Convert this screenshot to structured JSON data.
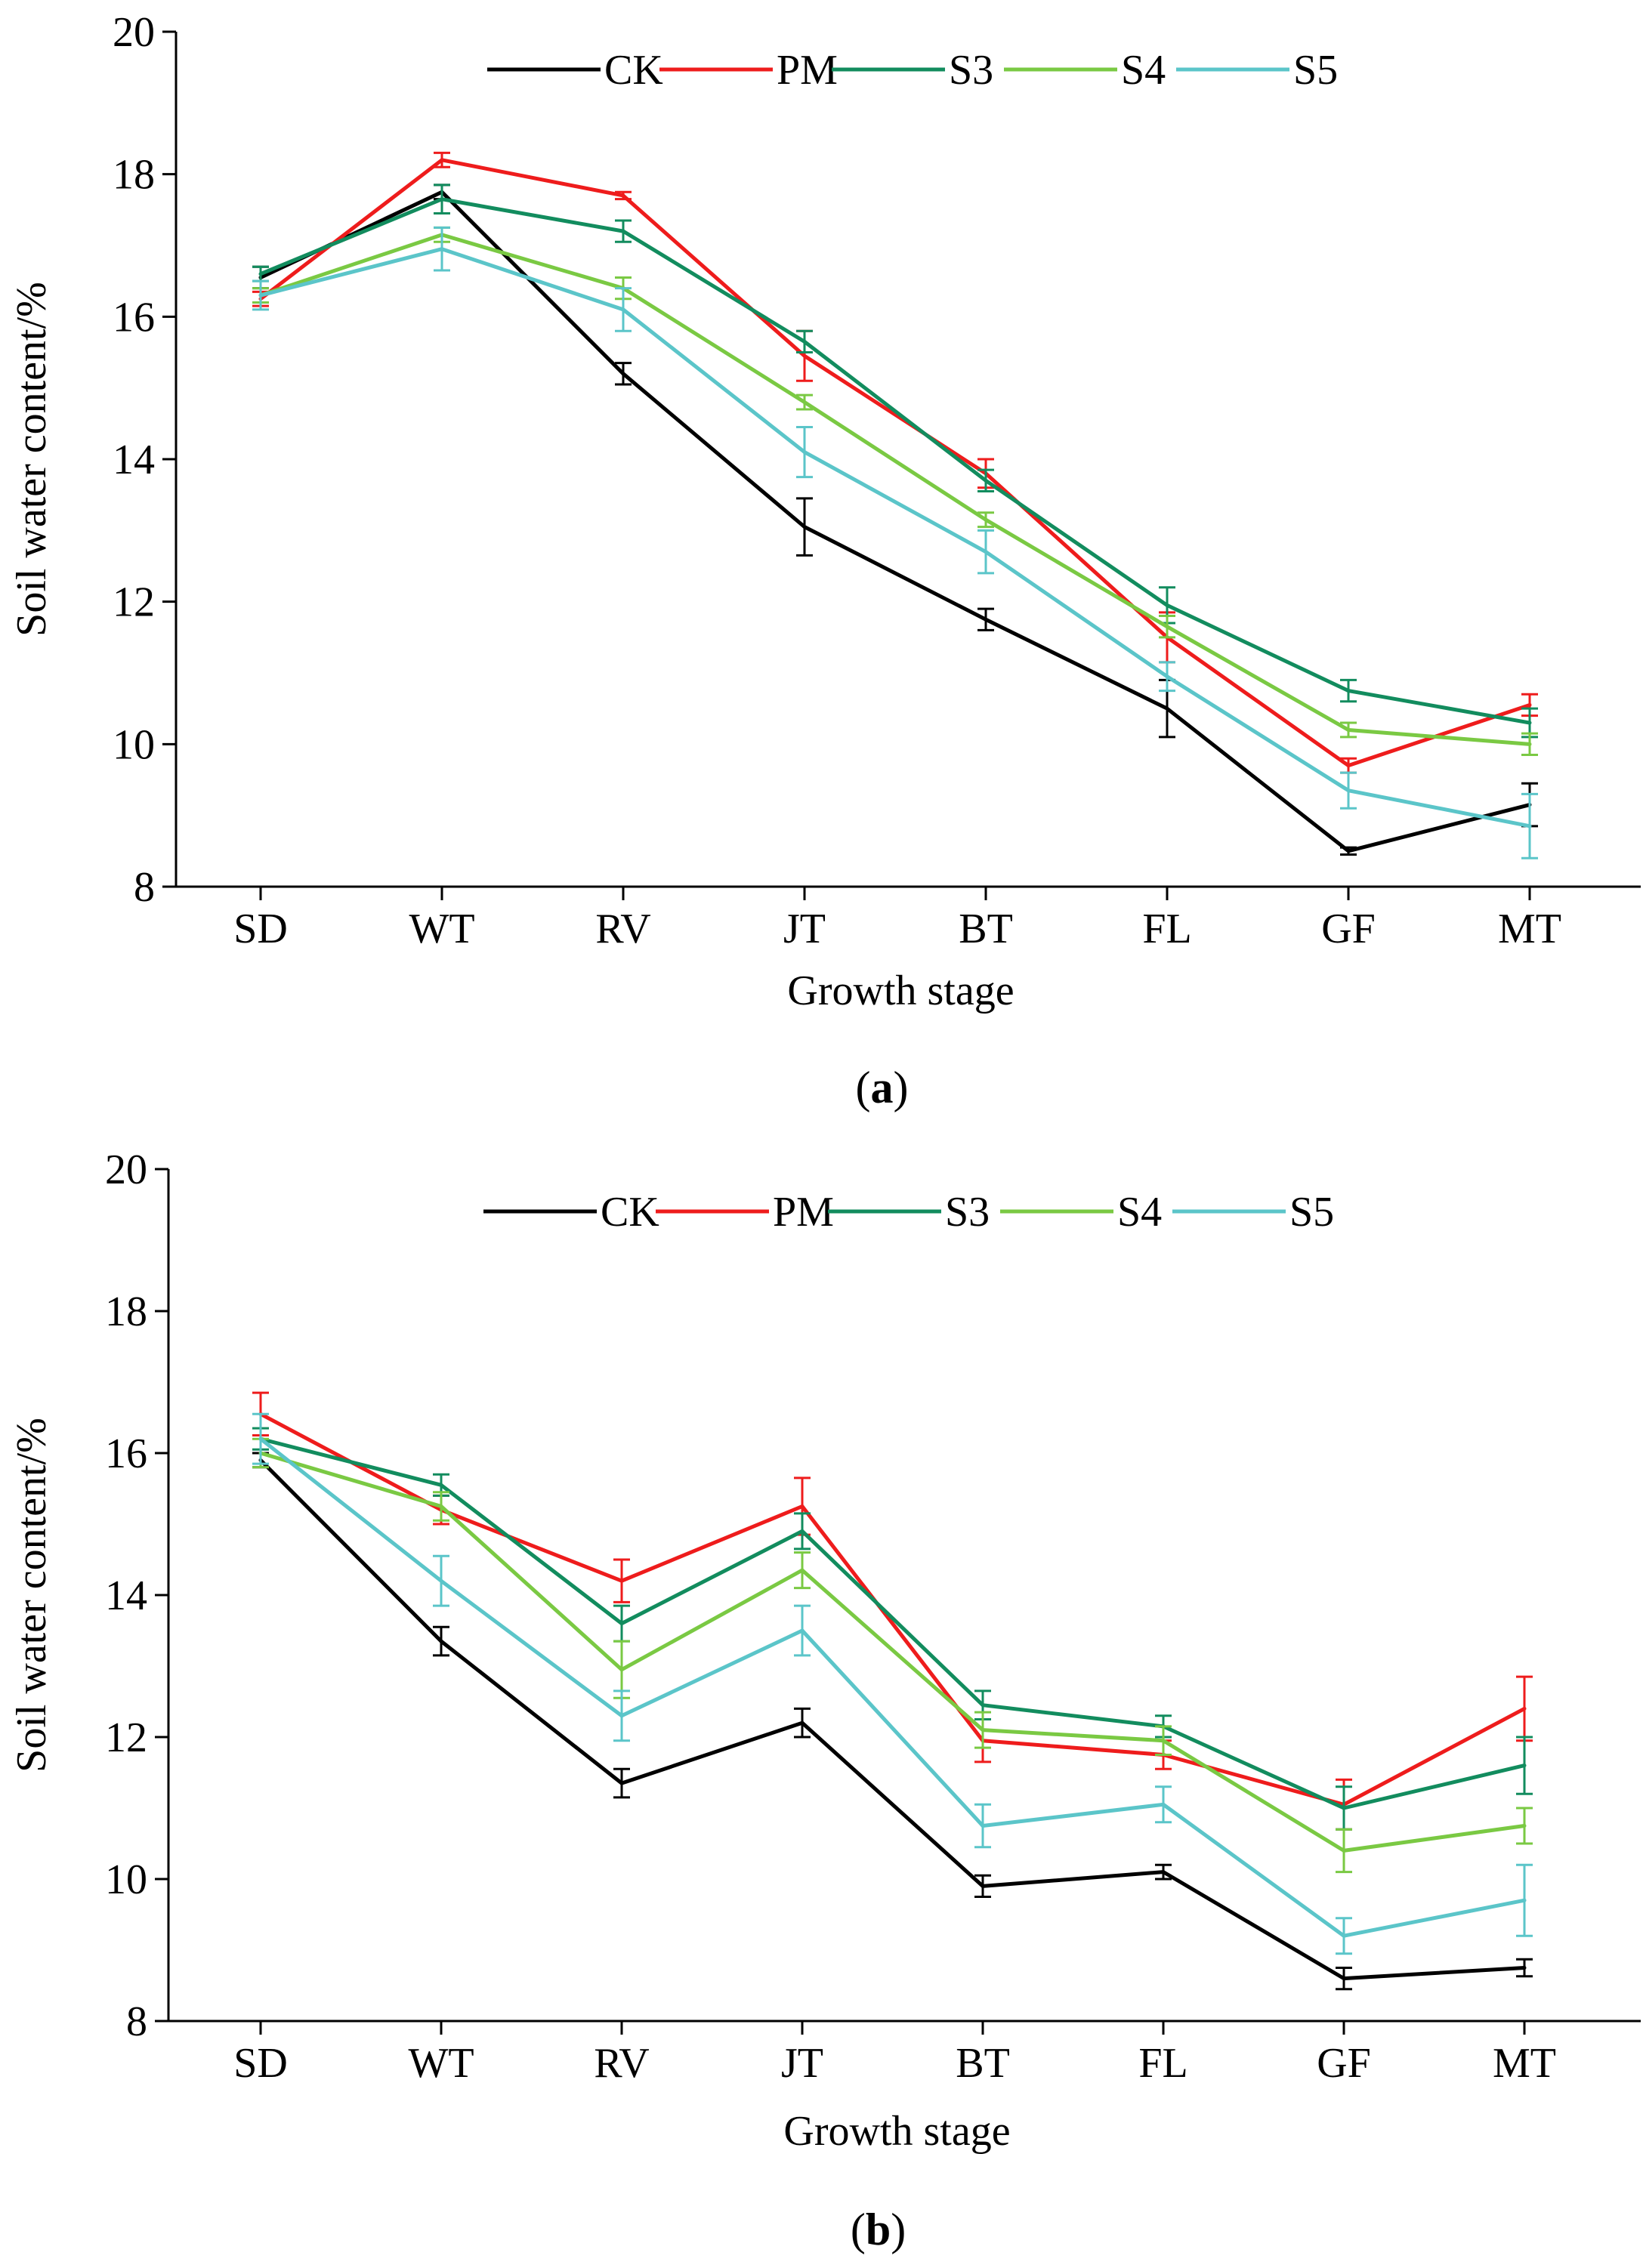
{
  "chart_data": [
    {
      "type": "line",
      "panel_label": {
        "open": "(",
        "letter": "a",
        "close": ")"
      },
      "categories": [
        "SD",
        "WT",
        "RV",
        "JT",
        "BT",
        "FL",
        "GF",
        "MT"
      ],
      "xlabel": "Growth stage",
      "ylabel": "Soil water content/%",
      "ylim": [
        8,
        20
      ],
      "yticks": [
        8,
        10,
        12,
        14,
        16,
        18,
        20
      ],
      "grid": false,
      "legend_placement": "top",
      "series": [
        {
          "name": "CK",
          "color": "#000000",
          "values": [
            16.55,
            17.75,
            15.2,
            13.05,
            11.75,
            10.5,
            8.5,
            9.15
          ],
          "errors": [
            0.15,
            0.1,
            0.15,
            0.4,
            0.15,
            0.4,
            0.05,
            0.3
          ]
        },
        {
          "name": "PM",
          "color": "#ee1c1c",
          "values": [
            16.25,
            18.2,
            17.7,
            15.45,
            13.8,
            11.5,
            9.7,
            10.55
          ],
          "errors": [
            0.1,
            0.1,
            0.05,
            0.35,
            0.2,
            0.35,
            0.1,
            0.15
          ]
        },
        {
          "name": "S3",
          "color": "#128c5e",
          "values": [
            16.6,
            17.65,
            17.2,
            15.65,
            13.7,
            11.95,
            10.75,
            10.3
          ],
          "errors": [
            0.1,
            0.2,
            0.15,
            0.15,
            0.15,
            0.25,
            0.15,
            0.2
          ]
        },
        {
          "name": "S4",
          "color": "#7ac943",
          "values": [
            16.3,
            17.15,
            16.4,
            14.8,
            13.15,
            11.65,
            10.2,
            10.0
          ],
          "errors": [
            0.1,
            0.1,
            0.15,
            0.1,
            0.1,
            0.15,
            0.1,
            0.15
          ]
        },
        {
          "name": "S5",
          "color": "#5bc5c9",
          "values": [
            16.3,
            16.95,
            16.1,
            14.1,
            12.7,
            10.95,
            9.35,
            8.85
          ],
          "errors": [
            0.2,
            0.3,
            0.3,
            0.35,
            0.3,
            0.2,
            0.25,
            0.45
          ]
        }
      ]
    },
    {
      "type": "line",
      "panel_label": {
        "open": "(",
        "letter": "b",
        "close": ")"
      },
      "categories": [
        "SD",
        "WT",
        "RV",
        "JT",
        "BT",
        "FL",
        "GF",
        "MT"
      ],
      "xlabel": "Growth stage",
      "ylabel": "Soil water content/%",
      "ylim": [
        8,
        20
      ],
      "yticks": [
        8,
        10,
        12,
        14,
        16,
        18,
        20
      ],
      "grid": false,
      "legend_placement": "top",
      "series": [
        {
          "name": "CK",
          "color": "#000000",
          "values": [
            15.9,
            13.35,
            11.35,
            12.2,
            9.9,
            10.1,
            8.6,
            8.75
          ],
          "errors": [
            0.1,
            0.2,
            0.2,
            0.2,
            0.15,
            0.1,
            0.15,
            0.12
          ]
        },
        {
          "name": "PM",
          "color": "#ee1c1c",
          "values": [
            16.55,
            15.2,
            14.2,
            15.25,
            11.95,
            11.75,
            11.05,
            12.4
          ],
          "errors": [
            0.3,
            0.2,
            0.3,
            0.4,
            0.3,
            0.2,
            0.35,
            0.45
          ]
        },
        {
          "name": "S3",
          "color": "#128c5e",
          "values": [
            16.2,
            15.55,
            13.6,
            14.9,
            12.45,
            12.15,
            11.0,
            11.6
          ],
          "errors": [
            0.15,
            0.15,
            0.25,
            0.25,
            0.2,
            0.15,
            0.3,
            0.4
          ]
        },
        {
          "name": "S4",
          "color": "#7ac943",
          "values": [
            16.0,
            15.25,
            12.95,
            14.35,
            12.1,
            11.95,
            10.4,
            10.75
          ],
          "errors": [
            0.2,
            0.2,
            0.4,
            0.25,
            0.25,
            0.2,
            0.3,
            0.25
          ]
        },
        {
          "name": "S5",
          "color": "#5bc5c9",
          "values": [
            16.2,
            14.2,
            12.3,
            13.5,
            10.75,
            11.05,
            9.2,
            9.7
          ],
          "errors": [
            0.35,
            0.35,
            0.35,
            0.35,
            0.3,
            0.25,
            0.25,
            0.5
          ]
        }
      ]
    }
  ]
}
